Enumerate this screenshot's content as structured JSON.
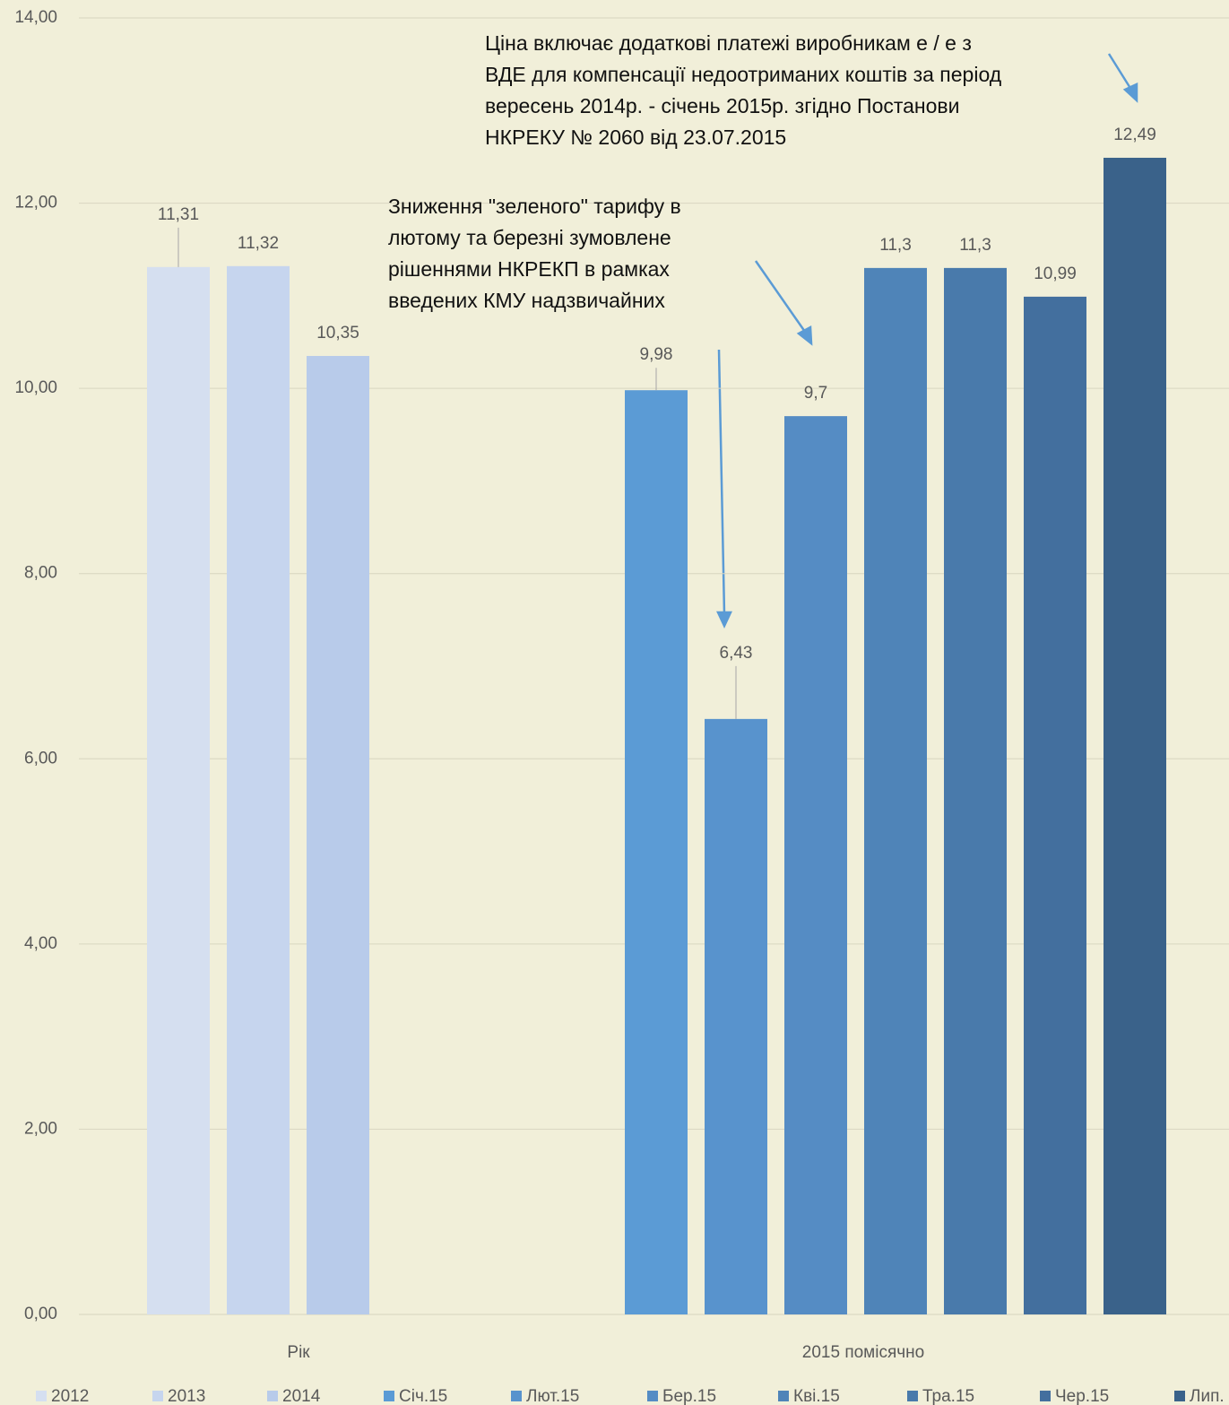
{
  "chart_data": {
    "type": "bar",
    "categories": [
      "Рік",
      "2015 помісячно"
    ],
    "series": [
      {
        "name": "2012",
        "color": "#d5dff0",
        "values": [
          11.31,
          null
        ],
        "value_labels": [
          "11,31",
          null
        ]
      },
      {
        "name": "2013",
        "color": "#c6d5ee",
        "values": [
          11.32,
          null
        ],
        "value_labels": [
          "11,32",
          null
        ]
      },
      {
        "name": "2014",
        "color": "#b8cbea",
        "values": [
          10.35,
          null
        ],
        "value_labels": [
          "10,35",
          null
        ]
      },
      {
        "name": "Січ.15",
        "color": "#5b9bd5",
        "values": [
          null,
          9.98
        ],
        "value_labels": [
          null,
          "9,98"
        ]
      },
      {
        "name": "Лют.15",
        "color": "#5893cd",
        "values": [
          null,
          6.43
        ],
        "value_labels": [
          null,
          "6,43"
        ]
      },
      {
        "name": "Бер.15",
        "color": "#558cc4",
        "values": [
          null,
          9.7
        ],
        "value_labels": [
          null,
          "9,7"
        ]
      },
      {
        "name": "Кві.15",
        "color": "#4f84b8",
        "values": [
          null,
          11.3
        ],
        "value_labels": [
          null,
          "11,3"
        ]
      },
      {
        "name": "Тра.15",
        "color": "#497aab",
        "values": [
          null,
          11.3
        ],
        "value_labels": [
          null,
          "11,3"
        ]
      },
      {
        "name": "Чер.15",
        "color": "#436f9e",
        "values": [
          null,
          10.99
        ],
        "value_labels": [
          null,
          "10,99"
        ]
      },
      {
        "name": "Лип.",
        "color": "#3a628a",
        "values": [
          null,
          12.49
        ],
        "value_labels": [
          null,
          "12,49"
        ]
      }
    ],
    "ylim": [
      0,
      14
    ],
    "yticks": [
      {
        "value": 0,
        "label": "0,00"
      },
      {
        "value": 2,
        "label": "2,00"
      },
      {
        "value": 4,
        "label": "4,00"
      },
      {
        "value": 6,
        "label": "6,00"
      },
      {
        "value": 8,
        "label": "8,00"
      },
      {
        "value": 10,
        "label": "10,00"
      },
      {
        "value": 12,
        "label": "12,00"
      },
      {
        "value": 14,
        "label": "14,00"
      }
    ],
    "grid": true,
    "legend": "bottom",
    "annotations": [
      {
        "lines": [
          "Ціна включає додаткові платежі виробникам е / е з",
          "ВДЕ для компенсації недоотриманих коштів за період",
          "вересень 2014р. - січень 2015р. згідно Постанови",
          "НКРЕКУ № 2060  від 23.07.2015"
        ]
      },
      {
        "lines": [
          "Зниження \"зеленого\" тарифу  в",
          "лютому та березні зумовлене",
          "рішеннями НКРЕКП в рамках",
          "введених КМУ надзвичайних"
        ]
      }
    ]
  }
}
